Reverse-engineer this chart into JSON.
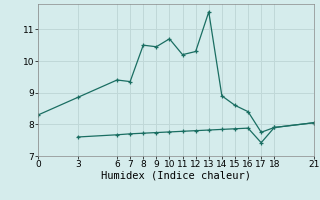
{
  "xlabel": "Humidex (Indice chaleur)",
  "ylabel": "",
  "bg_color": "#d5ecec",
  "grid_color": "#c0d8d8",
  "line_color": "#1a6e62",
  "line1_x": [
    0,
    3,
    6,
    7,
    8,
    9,
    10,
    11,
    12,
    13,
    14,
    15,
    16,
    17,
    18,
    21
  ],
  "line1_y": [
    8.3,
    8.85,
    9.4,
    9.35,
    10.5,
    10.45,
    10.7,
    10.2,
    10.3,
    11.55,
    8.9,
    8.6,
    8.4,
    7.75,
    7.9,
    8.05
  ],
  "line2_x": [
    3,
    6,
    7,
    8,
    9,
    10,
    11,
    12,
    13,
    14,
    15,
    16,
    17,
    18,
    21
  ],
  "line2_y": [
    7.6,
    7.67,
    7.7,
    7.72,
    7.74,
    7.76,
    7.78,
    7.8,
    7.82,
    7.84,
    7.86,
    7.88,
    7.42,
    7.9,
    8.05
  ],
  "xlim": [
    0,
    21
  ],
  "ylim": [
    7.0,
    11.8
  ],
  "xticks": [
    0,
    3,
    6,
    7,
    8,
    9,
    10,
    11,
    12,
    13,
    14,
    15,
    16,
    17,
    18,
    21
  ],
  "yticks": [
    7,
    8,
    9,
    10,
    11
  ],
  "tick_fontsize": 6.5,
  "xlabel_fontsize": 7.5,
  "marker_size": 3,
  "line_width": 0.9
}
